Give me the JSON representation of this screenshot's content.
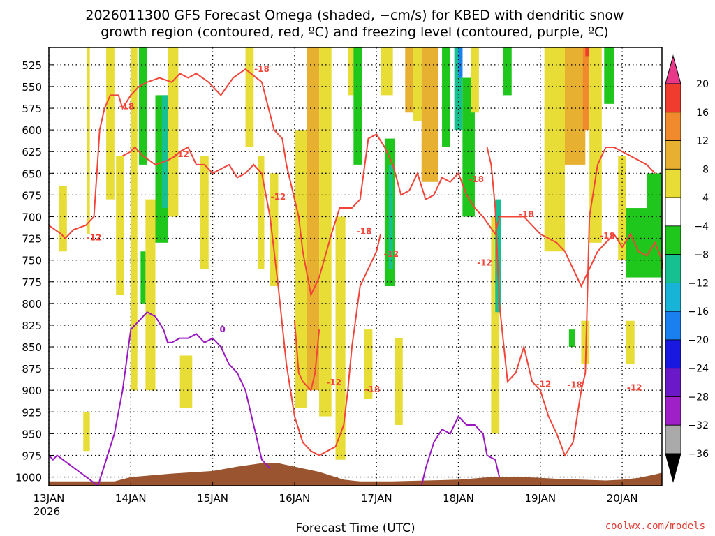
{
  "chart_data": {
    "type": "heatmap",
    "title_lines": [
      "2026011300 GFS Forecast Omega (shaded, −cm/s) for KBED with dendritic snow",
      "growth region (contoured, red, ºC) and freezing level (contoured, purple, ºC)"
    ],
    "xlabel": "Forecast Time (UTC)",
    "ylabel": "",
    "x_ticks": [
      "13JAN",
      "14JAN",
      "15JAN",
      "16JAN",
      "17JAN",
      "18JAN",
      "19JAN",
      "20JAN"
    ],
    "x_year": "2026",
    "xlim": [
      0,
      7.6
    ],
    "y_ticks": [
      525,
      550,
      575,
      600,
      625,
      650,
      675,
      700,
      725,
      750,
      775,
      800,
      825,
      850,
      875,
      900,
      925,
      950,
      975,
      1000
    ],
    "ylim": [
      1010,
      505
    ],
    "grid": true,
    "colorbar": {
      "labels": [
        "20",
        "16",
        "12",
        "8",
        "4",
        "−4",
        "−8",
        "−12",
        "−16",
        "−20",
        "−24",
        "−28",
        "−32",
        "−36"
      ],
      "colors": [
        "#e8388a",
        "#f03c2e",
        "#f08a2c",
        "#e8b030",
        "#e8dc36",
        "#ffffff",
        "#1fc61c",
        "#17c090",
        "#17b4d8",
        "#1a80f0",
        "#1818e0",
        "#6a18c8",
        "#a020c8",
        "#aaaaaa",
        "#000000"
      ]
    },
    "omega_cells": [
      {
        "x": [
          0.12,
          0.22
        ],
        "p": [
          665,
          740
        ],
        "color": "#e8dc36"
      },
      {
        "x": [
          0.42,
          0.5
        ],
        "p": [
          925,
          970
        ],
        "color": "#e8dc36"
      },
      {
        "x": [
          0.46,
          0.5
        ],
        "p": [
          505,
          720
        ],
        "color": "#e8dc36"
      },
      {
        "x": [
          0.7,
          0.8
        ],
        "p": [
          505,
          680
        ],
        "color": "#e8dc36"
      },
      {
        "x": [
          0.82,
          0.92
        ],
        "p": [
          630,
          790
        ],
        "color": "#e8dc36"
      },
      {
        "x": [
          1.0,
          1.08
        ],
        "p": [
          505,
          900
        ],
        "color": "#e8dc36"
      },
      {
        "x": [
          1.1,
          1.2
        ],
        "p": [
          505,
          640
        ],
        "color": "#1fc61c"
      },
      {
        "x": [
          1.12,
          1.18
        ],
        "p": [
          740,
          800
        ],
        "color": "#1fc61c"
      },
      {
        "x": [
          1.18,
          1.3
        ],
        "p": [
          680,
          900
        ],
        "color": "#e8dc36"
      },
      {
        "x": [
          1.3,
          1.45
        ],
        "p": [
          560,
          730
        ],
        "color": "#1fc61c"
      },
      {
        "x": [
          1.38,
          1.46
        ],
        "p": [
          560,
          690
        ],
        "color": "#17c090"
      },
      {
        "x": [
          1.45,
          1.58
        ],
        "p": [
          505,
          700
        ],
        "color": "#e8dc36"
      },
      {
        "x": [
          1.6,
          1.75
        ],
        "p": [
          860,
          920
        ],
        "color": "#e8dc36"
      },
      {
        "x": [
          1.85,
          1.95
        ],
        "p": [
          630,
          760
        ],
        "color": "#e8dc36"
      },
      {
        "x": [
          2.4,
          2.5
        ],
        "p": [
          505,
          620
        ],
        "color": "#e8dc36"
      },
      {
        "x": [
          2.55,
          2.63
        ],
        "p": [
          630,
          760
        ],
        "color": "#e8dc36"
      },
      {
        "x": [
          2.7,
          2.8
        ],
        "p": [
          650,
          780
        ],
        "color": "#e8dc36"
      },
      {
        "x": [
          3.0,
          3.15
        ],
        "p": [
          600,
          920
        ],
        "color": "#e8dc36"
      },
      {
        "x": [
          3.15,
          3.3
        ],
        "p": [
          505,
          900
        ],
        "color": "#e8b030"
      },
      {
        "x": [
          3.3,
          3.45
        ],
        "p": [
          505,
          930
        ],
        "color": "#e8dc36"
      },
      {
        "x": [
          3.5,
          3.62
        ],
        "p": [
          700,
          980
        ],
        "color": "#e8dc36"
      },
      {
        "x": [
          3.65,
          3.8
        ],
        "p": [
          505,
          560
        ],
        "color": "#e8dc36"
      },
      {
        "x": [
          3.72,
          3.82
        ],
        "p": [
          505,
          640
        ],
        "color": "#1fc61c"
      },
      {
        "x": [
          3.85,
          3.95
        ],
        "p": [
          830,
          910
        ],
        "color": "#e8dc36"
      },
      {
        "x": [
          4.05,
          4.2
        ],
        "p": [
          505,
          560
        ],
        "color": "#e8dc36"
      },
      {
        "x": [
          4.1,
          4.22
        ],
        "p": [
          610,
          780
        ],
        "color": "#1fc61c"
      },
      {
        "x": [
          4.15,
          4.2
        ],
        "p": [
          640,
          760
        ],
        "color": "#17c090"
      },
      {
        "x": [
          4.22,
          4.32
        ],
        "p": [
          840,
          940
        ],
        "color": "#e8dc36"
      },
      {
        "x": [
          4.35,
          4.45
        ],
        "p": [
          505,
          580
        ],
        "color": "#e8b030"
      },
      {
        "x": [
          4.45,
          4.55
        ],
        "p": [
          505,
          590
        ],
        "color": "#e8dc36"
      },
      {
        "x": [
          4.55,
          4.75
        ],
        "p": [
          505,
          660
        ],
        "color": "#e8b030"
      },
      {
        "x": [
          4.8,
          4.9
        ],
        "p": [
          505,
          620
        ],
        "color": "#1fc61c"
      },
      {
        "x": [
          4.95,
          5.05
        ],
        "p": [
          505,
          600
        ],
        "color": "#17c090"
      },
      {
        "x": [
          5.0,
          5.05
        ],
        "p": [
          505,
          540
        ],
        "color": "#1a80f0"
      },
      {
        "x": [
          5.05,
          5.2
        ],
        "p": [
          540,
          700
        ],
        "color": "#1fc61c"
      },
      {
        "x": [
          5.15,
          5.25
        ],
        "p": [
          505,
          580
        ],
        "color": "#e8dc36"
      },
      {
        "x": [
          5.4,
          5.5
        ],
        "p": [
          700,
          950
        ],
        "color": "#e8dc36"
      },
      {
        "x": [
          5.45,
          5.52
        ],
        "p": [
          680,
          810
        ],
        "color": "#17c090"
      },
      {
        "x": [
          5.55,
          5.65
        ],
        "p": [
          505,
          560
        ],
        "color": "#1fc61c"
      },
      {
        "x": [
          6.05,
          6.3
        ],
        "p": [
          505,
          740
        ],
        "color": "#e8dc36"
      },
      {
        "x": [
          6.3,
          6.55
        ],
        "p": [
          505,
          640
        ],
        "color": "#e8b030"
      },
      {
        "x": [
          6.52,
          6.6
        ],
        "p": [
          505,
          600
        ],
        "color": "#f08a2c"
      },
      {
        "x": [
          6.55,
          6.6
        ],
        "p": [
          505,
          515
        ],
        "color": "#f03c2e"
      },
      {
        "x": [
          6.6,
          6.75
        ],
        "p": [
          505,
          730
        ],
        "color": "#e8dc36"
      },
      {
        "x": [
          6.78,
          6.9
        ],
        "p": [
          505,
          570
        ],
        "color": "#1fc61c"
      },
      {
        "x": [
          6.35,
          6.42
        ],
        "p": [
          830,
          850
        ],
        "color": "#1fc61c"
      },
      {
        "x": [
          6.5,
          6.6
        ],
        "p": [
          820,
          870
        ],
        "color": "#e8dc36"
      },
      {
        "x": [
          6.95,
          7.05
        ],
        "p": [
          630,
          750
        ],
        "color": "#e8dc36"
      },
      {
        "x": [
          7.05,
          7.3
        ],
        "p": [
          690,
          770
        ],
        "color": "#1fc61c"
      },
      {
        "x": [
          7.3,
          7.48
        ],
        "p": [
          650,
          770
        ],
        "color": "#1fc61c"
      },
      {
        "x": [
          7.05,
          7.15
        ],
        "p": [
          820,
          870
        ],
        "color": "#e8dc36"
      }
    ],
    "series": [
      {
        "color": "#f2453a",
        "x": [
          0,
          0.15,
          0.2,
          0.3,
          0.45,
          0.55,
          0.6,
          0.62,
          0.68,
          0.75,
          0.85,
          0.9,
          1.0,
          1.1,
          1.2,
          1.35,
          1.5,
          1.6,
          1.7,
          1.8,
          1.95,
          2.1,
          2.25,
          2.4,
          2.6,
          2.75,
          2.85,
          2.9,
          3.0,
          3.05,
          3.1,
          3.2,
          3.3,
          3.45,
          3.55,
          3.7,
          3.8,
          3.9,
          4.0,
          4.1,
          4.2,
          4.3,
          4.4,
          4.5,
          4.6,
          4.7,
          4.8,
          4.9,
          5.0,
          5.1,
          5.2,
          5.3,
          5.45,
          5.5,
          5.6,
          5.7,
          5.8,
          5.9,
          6.0,
          6.2,
          6.3,
          6.4,
          6.5,
          6.6,
          6.7,
          6.8,
          6.9,
          7.0,
          7.1,
          7.2,
          7.3,
          7.4,
          7.5,
          7.6
        ],
        "y": [
          710,
          720,
          725,
          715,
          710,
          700,
          630,
          600,
          575,
          560,
          560,
          575,
          560,
          550,
          545,
          540,
          545,
          535,
          540,
          535,
          545,
          560,
          540,
          530,
          545,
          600,
          610,
          640,
          680,
          700,
          740,
          790,
          770,
          720,
          690,
          690,
          680,
          610,
          605,
          620,
          640,
          675,
          670,
          650,
          680,
          675,
          655,
          660,
          650,
          675,
          690,
          700,
          720,
          700,
          700,
          700,
          700,
          710,
          720,
          730,
          740,
          760,
          780,
          760,
          740,
          730,
          720,
          735,
          720,
          740,
          745,
          730,
          750,
          760
        ]
      },
      {
        "color": "#f2453a",
        "x": [
          0.9,
          1.0,
          1.05,
          1.1,
          1.15,
          1.3,
          1.45,
          1.55,
          1.6,
          1.7,
          1.8,
          1.9,
          2.0,
          2.1,
          2.2,
          2.3,
          2.4,
          2.5,
          2.6,
          2.7,
          2.8,
          2.9,
          3.0,
          3.1,
          3.2,
          3.3,
          3.4,
          3.5,
          3.6,
          3.65,
          3.7,
          3.8,
          3.9,
          4.0,
          4.05
        ],
        "y": [
          630,
          625,
          620,
          625,
          630,
          640,
          635,
          630,
          625,
          620,
          640,
          640,
          650,
          645,
          640,
          655,
          650,
          640,
          650,
          700,
          780,
          870,
          930,
          960,
          970,
          975,
          970,
          965,
          940,
          900,
          850,
          780,
          760,
          740,
          720
        ]
      },
      {
        "color": "#f2453a",
        "x": [
          5.35,
          5.4,
          5.45,
          5.5,
          5.6,
          5.7,
          5.8,
          5.9,
          6.0,
          6.1,
          6.2,
          6.3,
          6.4,
          6.5,
          6.55,
          6.6,
          6.7,
          6.8,
          6.9,
          7.0,
          7.1,
          7.2,
          7.3,
          7.4
        ],
        "y": [
          620,
          640,
          690,
          800,
          890,
          880,
          850,
          890,
          900,
          930,
          950,
          975,
          960,
          900,
          880,
          700,
          640,
          620,
          620,
          625,
          630,
          635,
          640,
          650
        ]
      },
      {
        "color": "#f2453a",
        "x": [
          3.0,
          3.05,
          3.1,
          3.2,
          3.25,
          3.3
        ],
        "y": [
          820,
          880,
          890,
          900,
          880,
          830
        ]
      },
      {
        "color": "#9a18c0",
        "x": [
          0,
          0.05,
          0.1,
          0.6,
          0.7,
          0.8,
          0.9,
          1.0,
          1.1,
          1.2,
          1.3,
          1.4,
          1.45,
          1.5,
          1.6,
          1.7,
          1.8,
          1.9,
          2.0,
          2.1,
          2.2,
          2.3,
          2.4,
          2.5,
          2.6,
          2.7
        ],
        "y": [
          975,
          980,
          975,
          1010,
          980,
          950,
          900,
          830,
          820,
          810,
          815,
          830,
          845,
          845,
          840,
          840,
          835,
          845,
          840,
          850,
          870,
          880,
          900,
          940,
          980,
          990
        ]
      },
      {
        "color": "#9a18c0",
        "x": [
          4.55,
          4.6,
          4.7,
          4.8,
          4.9,
          5.0,
          5.1,
          5.2,
          5.3,
          5.35,
          5.45,
          5.5
        ],
        "y": [
          1010,
          990,
          960,
          945,
          950,
          930,
          940,
          940,
          950,
          975,
          980,
          1000
        ]
      }
    ],
    "contour_labels": [
      {
        "text": "-18",
        "x": 0.95,
        "p": 573,
        "color": "#f2453a"
      },
      {
        "text": "-12",
        "x": 1.62,
        "p": 628,
        "color": "#f2453a"
      },
      {
        "text": "-18",
        "x": 2.6,
        "p": 530,
        "color": "#f2453a"
      },
      {
        "text": "-12",
        "x": 0.55,
        "p": 724,
        "color": "#f2453a"
      },
      {
        "text": "-12",
        "x": 2.8,
        "p": 677,
        "color": "#f2453a"
      },
      {
        "text": "-18",
        "x": 3.85,
        "p": 717,
        "color": "#f2453a"
      },
      {
        "text": "-12",
        "x": 4.18,
        "p": 743,
        "color": "#f2453a"
      },
      {
        "text": "-18",
        "x": 3.95,
        "p": 899,
        "color": "#f2453a"
      },
      {
        "text": "-12",
        "x": 3.48,
        "p": 891,
        "color": "#f2453a"
      },
      {
        "text": "-18",
        "x": 5.22,
        "p": 657,
        "color": "#f2453a"
      },
      {
        "text": "-12",
        "x": 5.32,
        "p": 753,
        "color": "#f2453a"
      },
      {
        "text": "-18",
        "x": 5.83,
        "p": 697,
        "color": "#f2453a"
      },
      {
        "text": "-12",
        "x": 6.04,
        "p": 893,
        "color": "#f2453a"
      },
      {
        "text": "-18",
        "x": 6.42,
        "p": 894,
        "color": "#f2453a"
      },
      {
        "text": "-18",
        "x": 6.82,
        "p": 722,
        "color": "#f2453a"
      },
      {
        "text": "-12",
        "x": 7.15,
        "p": 897,
        "color": "#f2453a"
      },
      {
        "text": "0",
        "x": 2.12,
        "p": 830,
        "color": "#9a18c0"
      }
    ],
    "terrain": {
      "color": "#9a5530",
      "x": [
        0,
        0.8,
        1.0,
        1.5,
        2.0,
        2.3,
        2.6,
        2.8,
        3.0,
        3.3,
        3.6,
        3.8,
        4.2,
        4.6,
        5.0,
        5.4,
        5.8,
        6.2,
        6.5,
        6.8,
        7.0,
        7.2,
        7.4,
        7.6
      ],
      "p": [
        1005,
        1005,
        1000,
        996,
        993,
        988,
        984,
        984,
        988,
        994,
        1003,
        1005,
        1005,
        1004,
        1003,
        1000,
        1000,
        1002,
        1003,
        1004,
        1003,
        1001,
        997,
        995
      ]
    }
  },
  "credit": "coolwx.com/models"
}
